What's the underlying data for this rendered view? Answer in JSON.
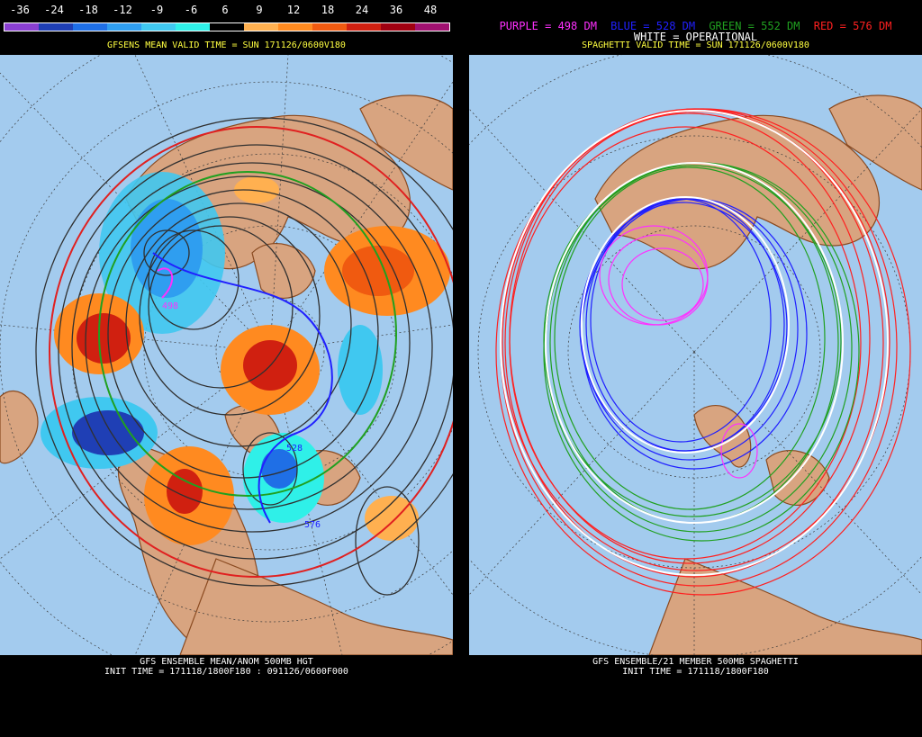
{
  "left_panel": {
    "scale": {
      "labels": [
        "-36",
        "-24",
        "-18",
        "-12",
        "-9",
        "-6",
        "6",
        "9",
        "12",
        "18",
        "24",
        "36",
        "48"
      ],
      "colors": [
        "#8a3fd1",
        "#1f3fb5",
        "#1f6fe6",
        "#2f9ef0",
        "#40c8f0",
        "#2ff0e8",
        "#000000",
        "#ffb050",
        "#ff8a20",
        "#f05a10",
        "#d02010",
        "#a00010",
        "#a01070"
      ]
    },
    "title": "GFSENS MEAN VALID TIME = SUN 171126/0600V180",
    "map_labels": {
      "c498": "498",
      "c528": "528",
      "c576": "576"
    },
    "footer_line1": "GFS ENSEMBLE MEAN/ANOM 500MB HGT",
    "footer_line2": "INIT TIME = 171118/1800F180 : 091126/0600F000"
  },
  "right_panel": {
    "legend": {
      "purple": "PURPLE = 498 DM",
      "blue": "BLUE = 528 DM",
      "green": "GREEN = 552 DM",
      "red": "RED = 576 DM",
      "white": "WHITE = OPERATIONAL"
    },
    "legend_colors": {
      "purple": "#ff30ff",
      "blue": "#2020ff",
      "green": "#20a020",
      "red": "#ff2020",
      "white": "#ffffff"
    },
    "title": "SPAGHETTI VALID TIME = SUN 171126/0600V180",
    "footer_line1": "GFS ENSEMBLE/21 MEMBER 500MB SPAGHETTI",
    "footer_line2": "INIT TIME = 171118/1800F180"
  },
  "colors": {
    "ocean": "#a3cbee",
    "land": "#d8a480",
    "coast": "#8a4a20",
    "grid": "#3a3a3a"
  }
}
